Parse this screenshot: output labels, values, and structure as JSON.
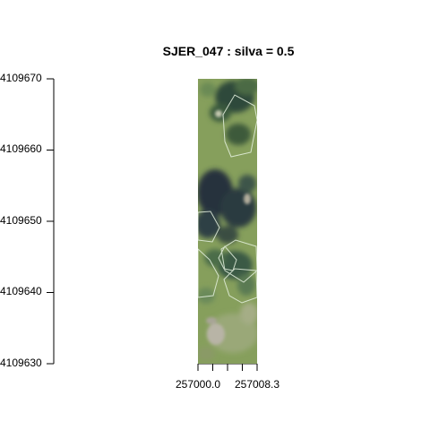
{
  "title": "SJER_047 : silva = 0.5",
  "y_axis": {
    "ticks": [
      "4109670",
      "4109660",
      "4109650",
      "4109640",
      "4109630"
    ],
    "displayed": [
      "4109670",
      "4109660",
      "4109650",
      "4109640",
      "4109630"
    ]
  },
  "x_axis": {
    "labels": [
      "257000.0",
      "257008.3"
    ]
  },
  "colors": {
    "grass": "#7f9a55",
    "canopy": "#2f4a3a",
    "shadow": "#25323c",
    "crown_outline": "#e6f2e0"
  }
}
